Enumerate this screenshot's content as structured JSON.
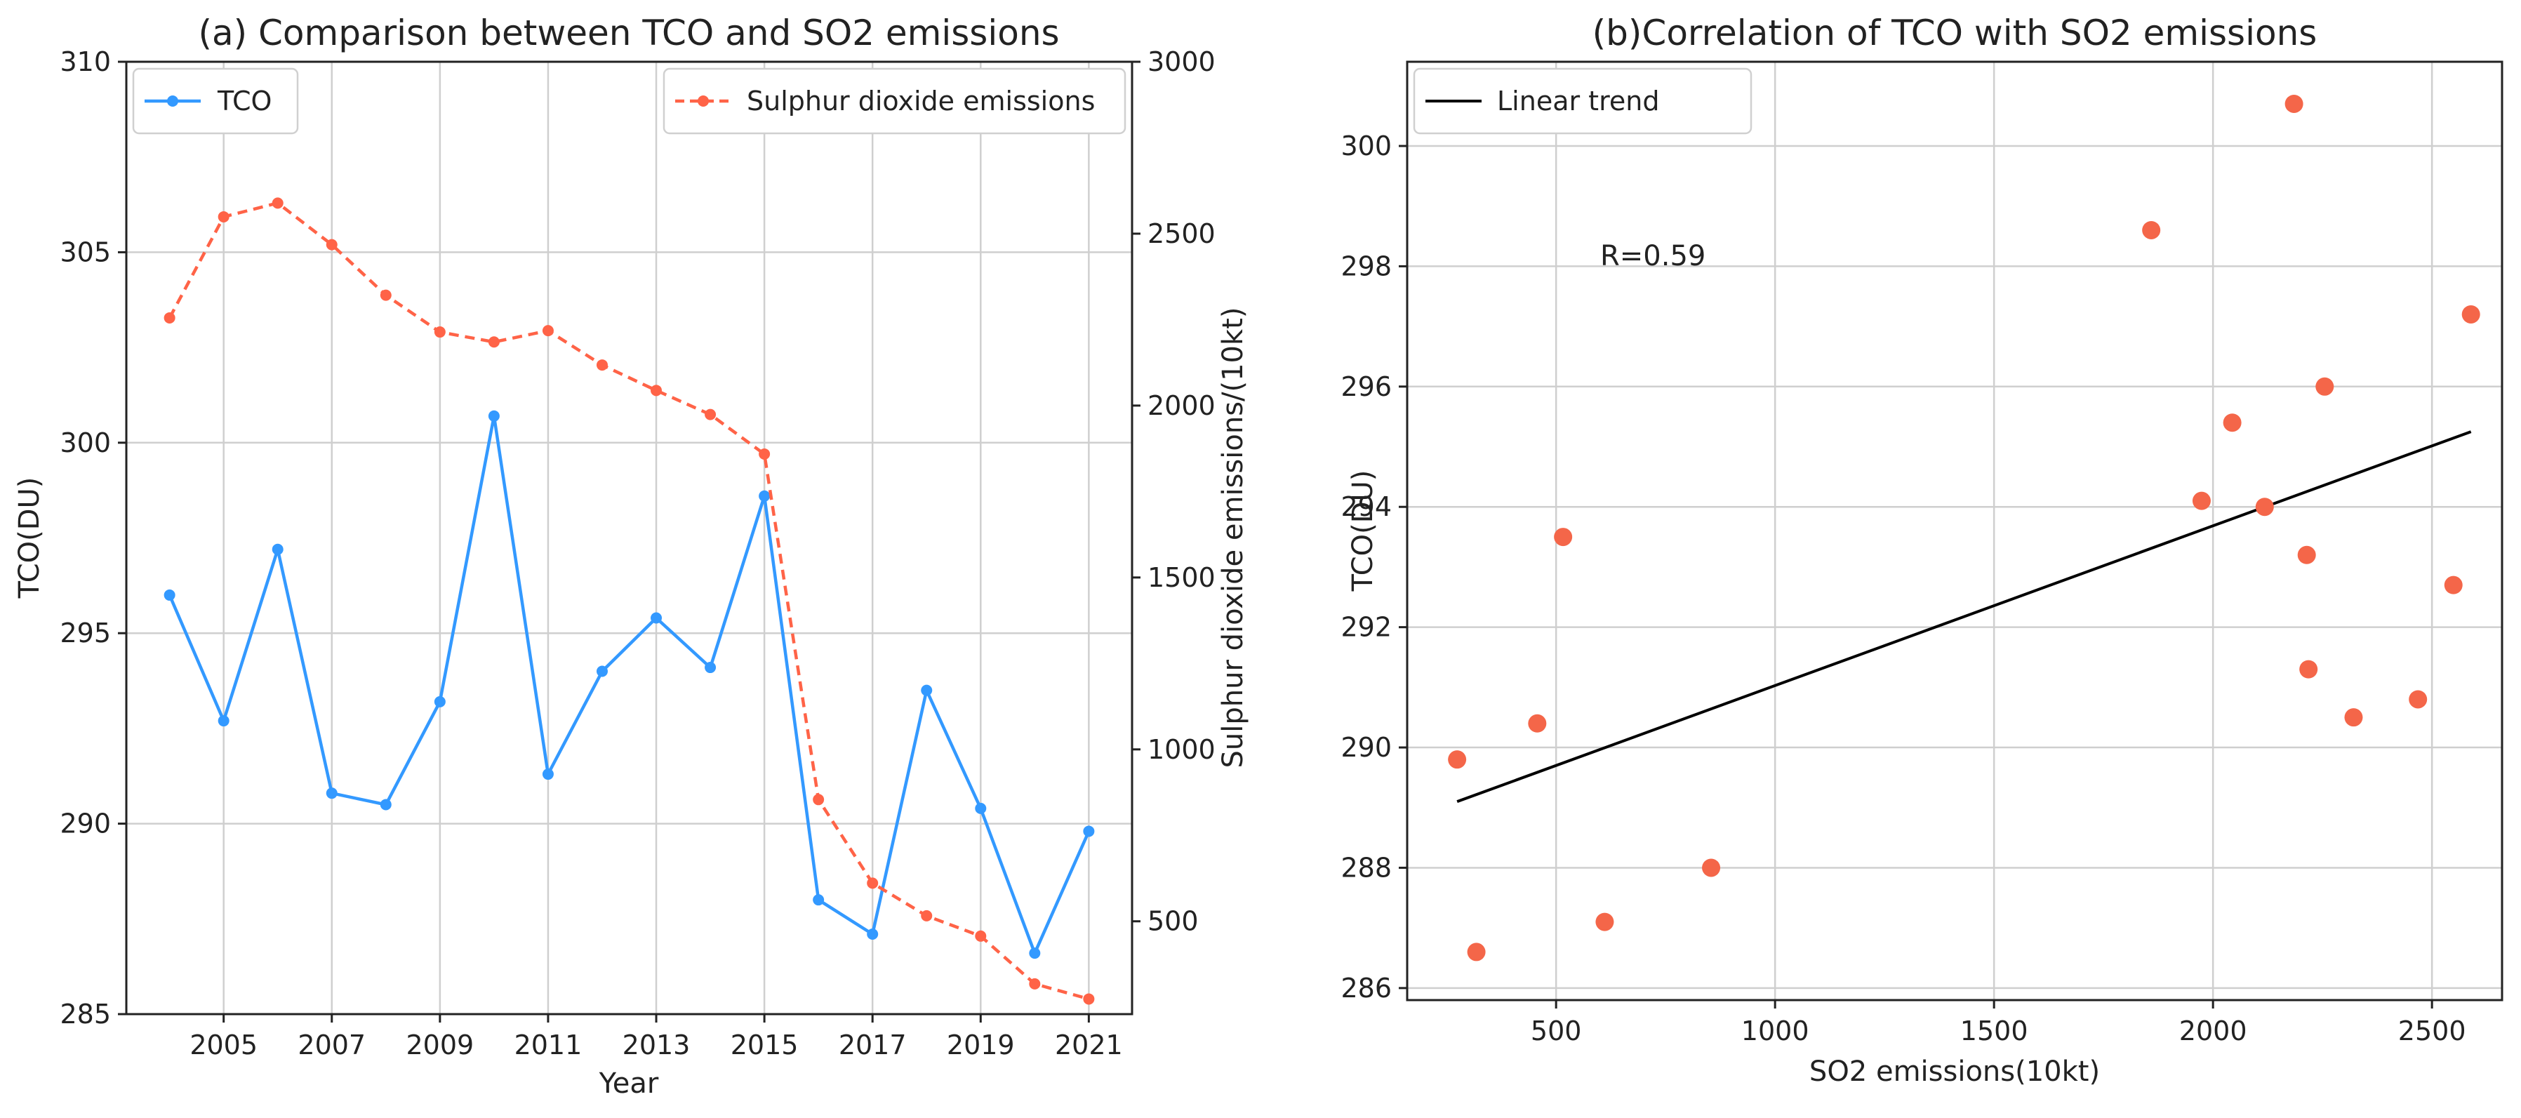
{
  "chart_data": [
    {
      "type": "line",
      "title": "(a) Comparison between TCO and SO2 emissions",
      "xlabel": "Year",
      "ylabel": "TCO(DU)",
      "y2label": "Sulphur dioxide emissions/(10kt)",
      "x": [
        2004,
        2005,
        2006,
        2007,
        2008,
        2009,
        2010,
        2011,
        2012,
        2013,
        2014,
        2015,
        2016,
        2017,
        2018,
        2019,
        2020,
        2021
      ],
      "xlim": [
        2003.2,
        2021.8
      ],
      "xticks": [
        2005,
        2007,
        2009,
        2011,
        2013,
        2015,
        2017,
        2019,
        2021
      ],
      "ylim": [
        285,
        310
      ],
      "yticks": [
        285,
        290,
        295,
        300,
        305,
        310
      ],
      "y2lim": [
        230,
        3000
      ],
      "y2ticks": [
        500,
        1000,
        1500,
        2000,
        2500,
        3000
      ],
      "grid": true,
      "series": [
        {
          "name": "TCO",
          "axis": "left",
          "color": "#3399ff",
          "style": "solid",
          "legend": "top-left",
          "values": [
            296.0,
            292.7,
            297.2,
            290.8,
            290.5,
            293.2,
            300.7,
            291.3,
            294.0,
            295.4,
            294.1,
            298.6,
            288.0,
            287.1,
            293.5,
            290.4,
            286.6,
            289.8
          ]
        },
        {
          "name": "Sulphur dioxide emissions",
          "axis": "right",
          "color": "#ff6347",
          "style": "dashed",
          "legend": "top-right",
          "values": [
            2255,
            2549,
            2589,
            2468,
            2321,
            2214,
            2185,
            2218,
            2118,
            2044,
            1974,
            1859,
            854,
            611,
            516,
            457,
            318,
            274
          ]
        }
      ]
    },
    {
      "type": "scatter",
      "title": "(b)Correlation of TCO with SO2 emissions",
      "xlabel": "SO2 emissions(10kt)",
      "ylabel": "TCO(DU)",
      "xlim": [
        160,
        2660
      ],
      "xticks": [
        500,
        1000,
        1500,
        2000,
        2500
      ],
      "ylim": [
        285.8,
        301.4
      ],
      "yticks": [
        286,
        288,
        290,
        292,
        294,
        296,
        298,
        300
      ],
      "grid": true,
      "annotation": "R=0.59",
      "point_color": "#f46649",
      "points": [
        {
          "x": 2255,
          "y": 296.0
        },
        {
          "x": 2549,
          "y": 292.7
        },
        {
          "x": 2589,
          "y": 297.2
        },
        {
          "x": 2468,
          "y": 290.8
        },
        {
          "x": 2321,
          "y": 290.5
        },
        {
          "x": 2214,
          "y": 293.2
        },
        {
          "x": 2185,
          "y": 300.7
        },
        {
          "x": 2218,
          "y": 291.3
        },
        {
          "x": 2118,
          "y": 294.0
        },
        {
          "x": 2044,
          "y": 295.4
        },
        {
          "x": 1974,
          "y": 294.1
        },
        {
          "x": 1859,
          "y": 298.6
        },
        {
          "x": 854,
          "y": 288.0
        },
        {
          "x": 611,
          "y": 287.1
        },
        {
          "x": 516,
          "y": 293.5
        },
        {
          "x": 457,
          "y": 290.4
        },
        {
          "x": 318,
          "y": 286.6
        },
        {
          "x": 274,
          "y": 289.8
        }
      ],
      "trend": {
        "name": "Linear trend",
        "color": "#000000",
        "legend": "top-left",
        "x": [
          274,
          2589
        ],
        "y": [
          289.1,
          295.25
        ]
      }
    }
  ]
}
